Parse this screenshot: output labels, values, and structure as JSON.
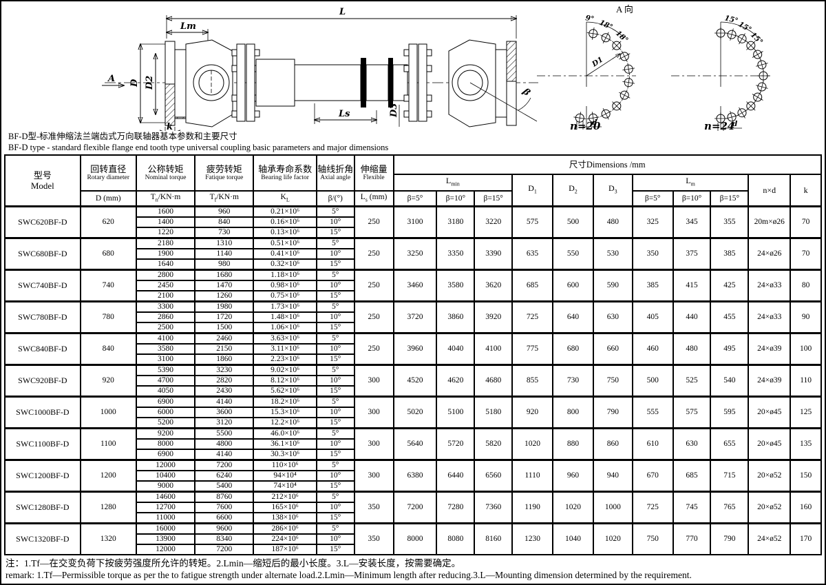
{
  "drawing": {
    "view_label": "A 向",
    "dim_labels": {
      "L": "L",
      "Lm": "Lm",
      "Ls": "Ls",
      "D": "D",
      "D2": "D2",
      "D3": "D3",
      "k": "k",
      "beta": "β",
      "A": "A"
    },
    "bolt_diagrams": [
      {
        "angles": [
          "9°",
          "18°",
          "18°"
        ],
        "radial_label": "D1",
        "hole_label": "d",
        "n": "n=20"
      },
      {
        "angles": [
          "15°",
          "15°",
          "15°"
        ],
        "hole_label": "d",
        "n": "n=24"
      }
    ]
  },
  "captions": {
    "cn": "BF-D型-标准伸缩法兰端齿式万向联轴器基本参数和主要尺寸",
    "en": "BF-D type - standard flexible flange end tooth type universal coupling basic parameters and major dimensions"
  },
  "table": {
    "headers": {
      "model_cn": "型号",
      "model_en": "Model",
      "dia_cn": "回转直径",
      "dia_en": "Rotary diameter",
      "dia_unit": "D (mm)",
      "tn_cn": "公称转矩",
      "tn_en": "Nominal torque",
      "tn_base": "T",
      "tn_sub": "n",
      "tn_unit": "/KN·m",
      "tf_cn": "疲劳转矩",
      "tf_en": "Fatique torque",
      "tf_base": "T",
      "tf_sub": "f",
      "tf_unit": "/KN·m",
      "kl_cn": "轴承寿命系数",
      "kl_en": "Bearing life factor",
      "kl_base": "K",
      "kl_sub": "L",
      "ang_cn": "轴线折角",
      "ang_en": "Axial angle",
      "ang_unit": "β/(°)",
      "flex_cn": "伸缩量",
      "flex_en": "Flexible",
      "flex_base": "L",
      "flex_sub": "s",
      "flex_unit": " (mm)",
      "dims": "尺寸Dimensions /mm",
      "lmin_base": "L",
      "lmin_sub": "min",
      "lm_base": "L",
      "lm_sub": "m",
      "beta5": "β=5°",
      "beta10": "β=10°",
      "beta15": "β=15°",
      "d1_base": "D",
      "d1_sub": "1",
      "d2_base": "D",
      "d2_sub": "2",
      "d3_base": "D",
      "d3_sub": "3",
      "nxd": "n×d",
      "k": "k"
    },
    "rows": [
      {
        "model": "SWC620BF-D",
        "d": "620",
        "sub": [
          [
            "1600",
            "960",
            "0.21×10⁶",
            "5°"
          ],
          [
            "1400",
            "840",
            "0.16×10⁶",
            "10°"
          ],
          [
            "1220",
            "730",
            "0.13×10⁶",
            "15°"
          ]
        ],
        "ls": "250",
        "lmin": [
          "3100",
          "3180",
          "3220"
        ],
        "d1": "575",
        "d2": "500",
        "d3": "480",
        "lm": [
          "325",
          "345",
          "355"
        ],
        "nxd": "20m×ø26",
        "k": "70"
      },
      {
        "model": "SWC680BF-D",
        "d": "680",
        "sub": [
          [
            "2180",
            "1310",
            "0.51×10⁶",
            "5°"
          ],
          [
            "1900",
            "1140",
            "0.41×10⁶",
            "10°"
          ],
          [
            "1640",
            "980",
            "0.32×10⁶",
            "15°"
          ]
        ],
        "ls": "250",
        "lmin": [
          "3250",
          "3350",
          "3390"
        ],
        "d1": "635",
        "d2": "550",
        "d3": "530",
        "lm": [
          "350",
          "375",
          "385"
        ],
        "nxd": "24×ø26",
        "k": "70"
      },
      {
        "model": "SWC740BF-D",
        "d": "740",
        "sub": [
          [
            "2800",
            "1680",
            "1.18×10⁶",
            "5°"
          ],
          [
            "2450",
            "1470",
            "0.98×10⁶",
            "10°"
          ],
          [
            "2100",
            "1260",
            "0.75×10⁶",
            "15°"
          ]
        ],
        "ls": "250",
        "lmin": [
          "3460",
          "3580",
          "3620"
        ],
        "d1": "685",
        "d2": "600",
        "d3": "590",
        "lm": [
          "385",
          "415",
          "425"
        ],
        "nxd": "24×ø33",
        "k": "80"
      },
      {
        "model": "SWC780BF-D",
        "d": "780",
        "sub": [
          [
            "3300",
            "1980",
            "1.73×10⁶",
            "5°"
          ],
          [
            "2860",
            "1720",
            "1.48×10⁶",
            "10°"
          ],
          [
            "2500",
            "1500",
            "1.06×10⁶",
            "15°"
          ]
        ],
        "ls": "250",
        "lmin": [
          "3720",
          "3860",
          "3920"
        ],
        "d1": "725",
        "d2": "640",
        "d3": "630",
        "lm": [
          "405",
          "440",
          "455"
        ],
        "nxd": "24×ø33",
        "k": "90"
      },
      {
        "model": "SWC840BF-D",
        "d": "840",
        "sub": [
          [
            "4100",
            "2460",
            "3.63×10⁶",
            "5°"
          ],
          [
            "3580",
            "2150",
            "3.11×10⁶",
            "10°"
          ],
          [
            "3100",
            "1860",
            "2.23×10⁶",
            "15°"
          ]
        ],
        "ls": "250",
        "lmin": [
          "3960",
          "4040",
          "4100"
        ],
        "d1": "775",
        "d2": "680",
        "d3": "660",
        "lm": [
          "460",
          "480",
          "495"
        ],
        "nxd": "24×ø39",
        "k": "100"
      },
      {
        "model": "SWC920BF-D",
        "d": "920",
        "sub": [
          [
            "5390",
            "3230",
            "9.02×10⁶",
            "5°"
          ],
          [
            "4700",
            "2820",
            "8.12×10⁶",
            "10°"
          ],
          [
            "4050",
            "2430",
            "5.62×10⁶",
            "15°"
          ]
        ],
        "ls": "300",
        "lmin": [
          "4520",
          "4620",
          "4680"
        ],
        "d1": "855",
        "d2": "730",
        "d3": "750",
        "lm": [
          "500",
          "525",
          "540"
        ],
        "nxd": "24×ø39",
        "k": "110"
      },
      {
        "model": "SWC1000BF-D",
        "d": "1000",
        "sub": [
          [
            "6900",
            "4140",
            "18.2×10⁶",
            "5°"
          ],
          [
            "6000",
            "3600",
            "15.3×10⁶",
            "10°"
          ],
          [
            "5200",
            "3120",
            "12.2×10⁶",
            "15°"
          ]
        ],
        "ls": "300",
        "lmin": [
          "5020",
          "5100",
          "5180"
        ],
        "d1": "920",
        "d2": "800",
        "d3": "790",
        "lm": [
          "555",
          "575",
          "595"
        ],
        "nxd": "20×ø45",
        "k": "125"
      },
      {
        "model": "SWC1100BF-D",
        "d": "1100",
        "sub": [
          [
            "9200",
            "5500",
            "46.0×10⁶",
            "5°"
          ],
          [
            "8000",
            "4800",
            "36.1×10⁶",
            "10°"
          ],
          [
            "6900",
            "4140",
            "30.3×10⁶",
            "15°"
          ]
        ],
        "ls": "300",
        "lmin": [
          "5640",
          "5720",
          "5820"
        ],
        "d1": "1020",
        "d2": "880",
        "d3": "860",
        "lm": [
          "610",
          "630",
          "655"
        ],
        "nxd": "20×ø45",
        "k": "135"
      },
      {
        "model": "SWC1200BF-D",
        "d": "1200",
        "sub": [
          [
            "12000",
            "7200",
            "110×10⁶",
            "5°"
          ],
          [
            "10400",
            "6240",
            "94×10⁴",
            "10°"
          ],
          [
            "9000",
            "5400",
            "74×10⁴",
            "15°"
          ]
        ],
        "ls": "300",
        "lmin": [
          "6380",
          "6440",
          "6560"
        ],
        "d1": "1110",
        "d2": "960",
        "d3": "940",
        "lm": [
          "670",
          "685",
          "715"
        ],
        "nxd": "20×ø52",
        "k": "150"
      },
      {
        "model": "SWC1280BF-D",
        "d": "1280",
        "sub": [
          [
            "14600",
            "8760",
            "212×10⁶",
            "5°"
          ],
          [
            "12700",
            "7600",
            "165×10⁶",
            "10°"
          ],
          [
            "11000",
            "6600",
            "138×10⁶",
            "15°"
          ]
        ],
        "ls": "350",
        "lmin": [
          "7200",
          "7280",
          "7360"
        ],
        "d1": "1190",
        "d2": "1020",
        "d3": "1000",
        "lm": [
          "725",
          "745",
          "765"
        ],
        "nxd": "20×ø52",
        "k": "160"
      },
      {
        "model": "SWC1320BF-D",
        "d": "1320",
        "sub": [
          [
            "16000",
            "9600",
            "286×10⁶",
            "5°"
          ],
          [
            "13900",
            "8340",
            "224×10⁶",
            "10°"
          ],
          [
            "12000",
            "7200",
            "187×10⁶",
            "15°"
          ]
        ],
        "ls": "350",
        "lmin": [
          "8000",
          "8080",
          "8160"
        ],
        "d1": "1230",
        "d2": "1040",
        "d3": "1020",
        "lm": [
          "750",
          "770",
          "790"
        ],
        "nxd": "24×ø52",
        "k": "170"
      }
    ]
  },
  "notes": {
    "cn": "注：1.Tf—在交变负荷下按疲劳强度所允许的转矩。2.Lmin—缩短后的最小长度。3.L—安装长度，按需要确定。",
    "en": "remark: 1.Tf—Permissible torque as per the to fatigue strength under alternate load.2.Lmin—Minimum length after reducing.3.L—Mounting dimension determined by the requirement."
  }
}
